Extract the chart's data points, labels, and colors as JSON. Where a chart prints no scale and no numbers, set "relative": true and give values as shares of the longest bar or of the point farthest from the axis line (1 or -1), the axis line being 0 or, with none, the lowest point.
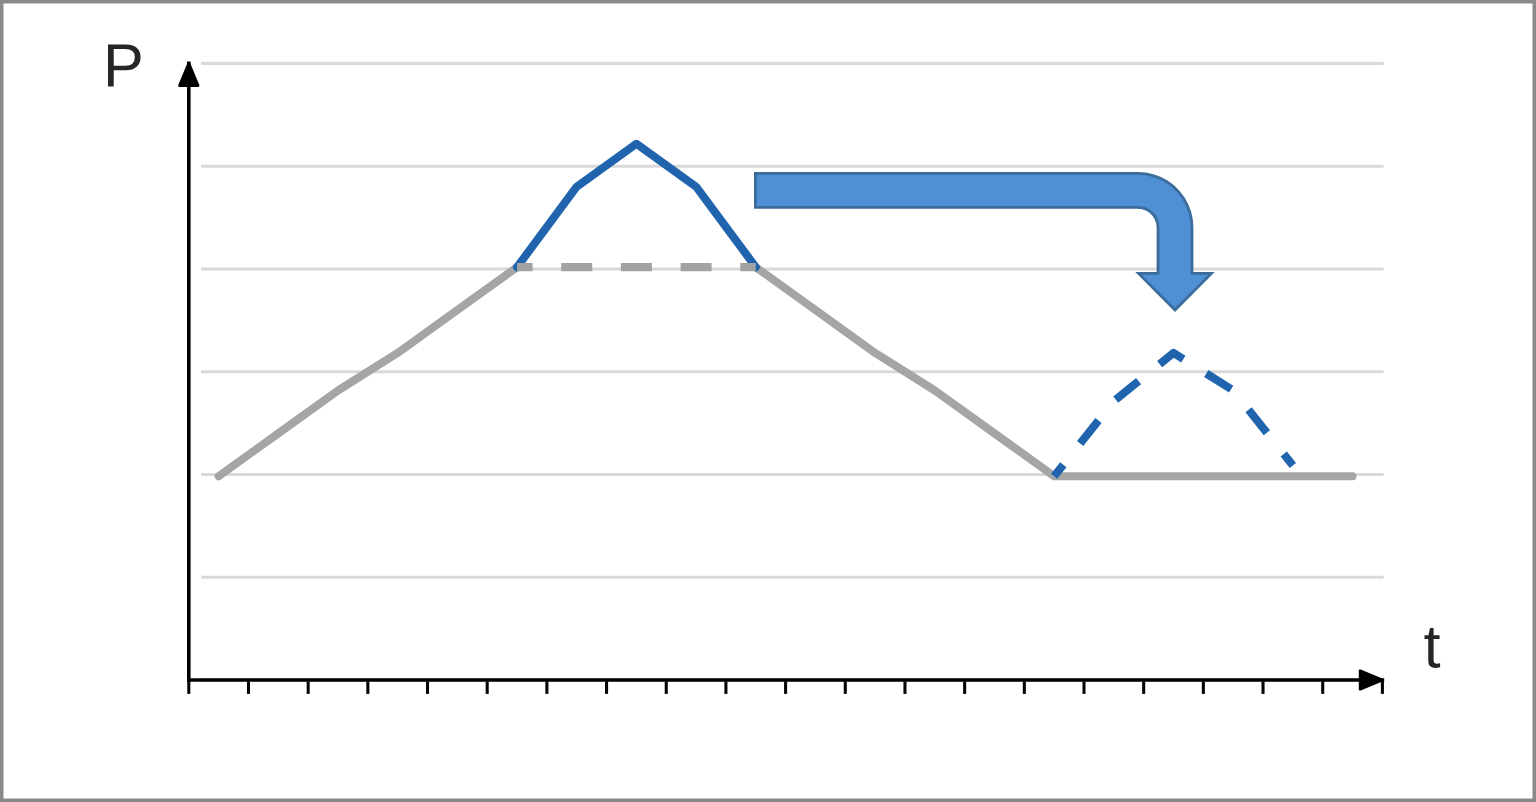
{
  "chart_data": {
    "type": "line",
    "xlabel": "t",
    "ylabel": "P",
    "relative": true,
    "grid": "y",
    "categories": [
      null,
      null,
      null,
      null,
      null,
      null,
      null,
      null,
      null,
      null,
      null,
      null,
      null,
      null,
      null,
      null,
      null,
      null,
      null,
      null
    ],
    "series": [
      {
        "color": "#a5a5a5",
        "line_style": "solid",
        "values": [
          0.38,
          0.46,
          0.54,
          0.61,
          0.69,
          0.77,
          null,
          null,
          null,
          0.77,
          0.69,
          0.61,
          0.54,
          0.46,
          0.38,
          0.38,
          0.38,
          0.38,
          0.38,
          0.38
        ]
      },
      {
        "color": "#a2a2a2",
        "line_style": "dashed",
        "values": [
          null,
          null,
          null,
          null,
          null,
          0.77,
          0.77,
          0.77,
          0.77,
          0.77,
          null,
          null,
          null,
          null,
          null,
          null,
          null,
          null,
          null,
          null
        ]
      },
      {
        "color": "#1f64ad",
        "line_style": "solid",
        "values": [
          null,
          null,
          null,
          null,
          null,
          0.77,
          0.92,
          1,
          0.92,
          0.77,
          null,
          null,
          null,
          null,
          null,
          null,
          null,
          null,
          null,
          null
        ]
      },
      {
        "color": "#1f64ad",
        "line_style": "dashed",
        "values": [
          null,
          null,
          null,
          null,
          null,
          null,
          null,
          null,
          null,
          null,
          null,
          null,
          null,
          null,
          0.38,
          0.52,
          0.61,
          0.54,
          0.4,
          null
        ]
      }
    ]
  }
}
